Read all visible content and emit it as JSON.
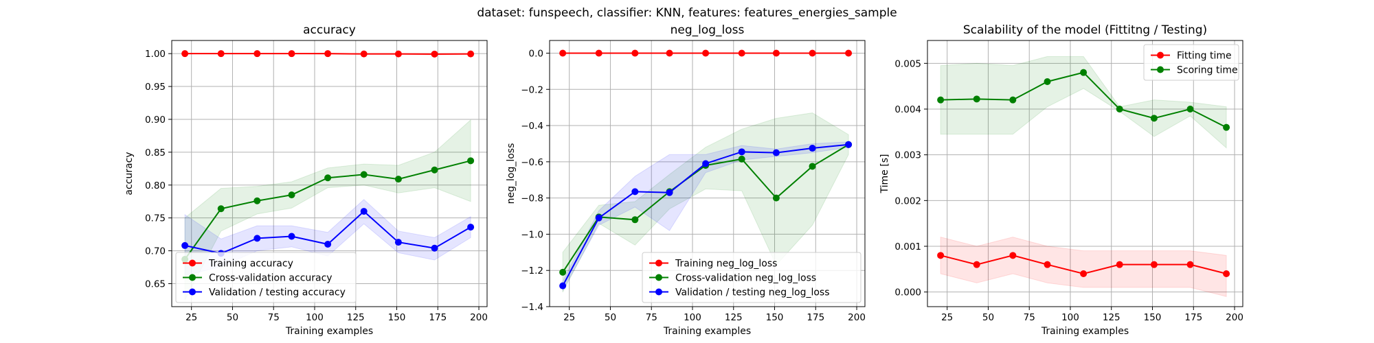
{
  "figure": {
    "suptitle": "dataset: funspeech, classifier: KNN, features: features_energies_sample"
  },
  "chart_data": [
    {
      "type": "line",
      "title": "accuracy",
      "xlabel": "Training examples",
      "ylabel": "accuracy",
      "xlim": [
        13,
        205
      ],
      "ylim": [
        0.615,
        1.02
      ],
      "xticks": [
        25,
        50,
        75,
        100,
        125,
        150,
        175,
        200
      ],
      "yticks": [
        0.65,
        0.7,
        0.75,
        0.8,
        0.85,
        0.9,
        0.95,
        1.0
      ],
      "ytick_decimals": 2,
      "grid": true,
      "legend_position": "lower-left",
      "x": [
        21,
        43,
        65,
        86,
        108,
        130,
        151,
        173,
        195
      ],
      "series": [
        {
          "name": "Training accuracy",
          "color": "#ff0000",
          "values": [
            1.0,
            1.0,
            1.0,
            1.0,
            1.0,
            0.9995,
            0.9995,
            0.9993,
            0.9995
          ],
          "lower": [
            1.0,
            1.0,
            1.0,
            1.0,
            0.999,
            0.999,
            0.999,
            0.998,
            0.999
          ],
          "upper": [
            1.0,
            1.0,
            1.0,
            1.0,
            1.0,
            1.0,
            1.0,
            1.0,
            1.0
          ],
          "band_color": "#ff0000",
          "band_opacity": 0.1
        },
        {
          "name": "Cross-validation accuracy",
          "color": "#008000",
          "values": [
            0.687,
            0.764,
            0.776,
            0.785,
            0.811,
            0.816,
            0.809,
            0.823,
            0.837
          ],
          "lower": [
            0.625,
            0.73,
            0.756,
            0.765,
            0.796,
            0.8,
            0.788,
            0.796,
            0.775
          ],
          "upper": [
            0.75,
            0.795,
            0.798,
            0.805,
            0.826,
            0.832,
            0.83,
            0.85,
            0.899
          ],
          "band_color": "#008000",
          "band_opacity": 0.1
        },
        {
          "name": "Validation / testing accuracy",
          "color": "#0000ff",
          "values": [
            0.708,
            0.696,
            0.719,
            0.722,
            0.71,
            0.76,
            0.713,
            0.704,
            0.736
          ],
          "lower": [
            0.662,
            0.676,
            0.7,
            0.706,
            0.692,
            0.741,
            0.697,
            0.686,
            0.72
          ],
          "upper": [
            0.755,
            0.718,
            0.738,
            0.738,
            0.728,
            0.778,
            0.73,
            0.72,
            0.752
          ],
          "band_color": "#0000ff",
          "band_opacity": 0.1
        }
      ]
    },
    {
      "type": "line",
      "title": "neg_log_loss",
      "xlabel": "Training examples",
      "ylabel": "neg_log_loss",
      "xlim": [
        13,
        205
      ],
      "ylim": [
        -1.4,
        0.07
      ],
      "xticks": [
        25,
        50,
        75,
        100,
        125,
        150,
        175,
        200
      ],
      "yticks": [
        -1.4,
        -1.2,
        -1.0,
        -0.8,
        -0.6,
        -0.4,
        -0.2,
        0.0
      ],
      "ytick_decimals": 1,
      "grid": true,
      "legend_position": "lower-right",
      "x": [
        21,
        43,
        65,
        86,
        108,
        130,
        151,
        173,
        195
      ],
      "series": [
        {
          "name": "Training neg_log_loss",
          "color": "#ff0000",
          "values": [
            0,
            0,
            0,
            0,
            0,
            0,
            0,
            0,
            0
          ],
          "lower": [
            0,
            0,
            0,
            0,
            0,
            0,
            0,
            0,
            0
          ],
          "upper": [
            0,
            0,
            0,
            0,
            0,
            0,
            0,
            0,
            0
          ],
          "band_color": "#ff0000",
          "band_opacity": 0.1
        },
        {
          "name": "Cross-validation neg_log_loss",
          "color": "#008000",
          "values": [
            -1.21,
            -0.905,
            -0.92,
            -0.765,
            -0.62,
            -0.585,
            -0.8,
            -0.625,
            -0.505
          ],
          "lower": [
            -1.32,
            -0.94,
            -1.06,
            -0.86,
            -0.75,
            -0.76,
            -1.17,
            -0.95,
            -0.56
          ],
          "upper": [
            -1.1,
            -0.84,
            -0.82,
            -0.67,
            -0.52,
            -0.42,
            -0.36,
            -0.33,
            -0.45
          ],
          "band_color": "#008000",
          "band_opacity": 0.1
        },
        {
          "name": "Validation / testing neg_log_loss",
          "color": "#0000ff",
          "values": [
            -1.285,
            -0.91,
            -0.765,
            -0.77,
            -0.61,
            -0.545,
            -0.55,
            -0.525,
            -0.505
          ],
          "lower": [
            -1.31,
            -0.95,
            -0.85,
            -0.98,
            -0.66,
            -0.59,
            -0.57,
            -0.55,
            -0.52
          ],
          "upper": [
            -1.26,
            -0.87,
            -0.68,
            -0.56,
            -0.56,
            -0.51,
            -0.53,
            -0.5,
            -0.49
          ],
          "band_color": "#0000ff",
          "band_opacity": 0.1
        }
      ]
    },
    {
      "type": "line",
      "title": "Scalability of the model (Fittitng / Testing)",
      "xlabel": "Training examples",
      "ylabel": "Time [s]",
      "xlim": [
        13,
        205
      ],
      "ylim": [
        -0.00032,
        0.0055
      ],
      "xticks": [
        25,
        50,
        75,
        100,
        125,
        150,
        175,
        200
      ],
      "yticks": [
        0.0,
        0.001,
        0.002,
        0.003,
        0.004,
        0.005
      ],
      "ytick_decimals": 3,
      "grid": true,
      "legend_position": "upper-right",
      "x": [
        21,
        43,
        65,
        86,
        108,
        130,
        151,
        173,
        195
      ],
      "series": [
        {
          "name": "Fitting time",
          "color": "#ff0000",
          "values": [
            0.0008,
            0.0006,
            0.0008,
            0.0006,
            0.0004,
            0.0006,
            0.0006,
            0.0006,
            0.0004
          ],
          "lower": [
            0.0004,
            0.0002,
            0.0004,
            0.0002,
            0.0001,
            0.0001,
            0.0001,
            0.0001,
            -0.0001
          ],
          "upper": [
            0.0012,
            0.001,
            0.0012,
            0.001,
            0.0009,
            0.0009,
            0.0009,
            0.0009,
            0.0008
          ],
          "band_color": "#ff0000",
          "band_opacity": 0.1
        },
        {
          "name": "Scoring time",
          "color": "#008000",
          "values": [
            0.0042,
            0.00422,
            0.0042,
            0.0046,
            0.0048,
            0.004,
            0.0038,
            0.004,
            0.0036
          ],
          "lower": [
            0.00345,
            0.00345,
            0.00345,
            0.00405,
            0.00445,
            0.00395,
            0.0034,
            0.00385,
            0.00315
          ],
          "upper": [
            0.00495,
            0.005,
            0.00495,
            0.00515,
            0.00515,
            0.00405,
            0.0042,
            0.00415,
            0.00405
          ],
          "band_color": "#008000",
          "band_opacity": 0.1
        }
      ]
    }
  ]
}
